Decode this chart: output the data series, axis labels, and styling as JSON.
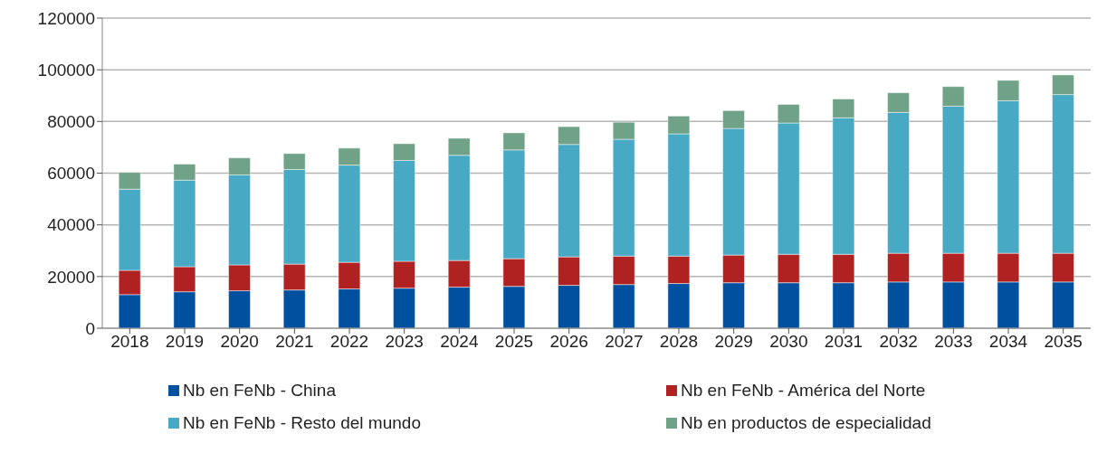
{
  "chart_data": {
    "type": "bar",
    "stacked": true,
    "categories": [
      "2018",
      "2019",
      "2020",
      "2021",
      "2022",
      "2023",
      "2024",
      "2025",
      "2026",
      "2027",
      "2028",
      "2029",
      "2030",
      "2031",
      "2032",
      "2033",
      "2034",
      "2035"
    ],
    "series": [
      {
        "name": "Nb en FeNb - China",
        "color": "#0050a0",
        "values": [
          13000,
          14100,
          14500,
          14800,
          15200,
          15500,
          15900,
          16200,
          16600,
          16900,
          17300,
          17600,
          17600,
          17600,
          17900,
          17900,
          17900,
          17900
        ]
      },
      {
        "name": "Nb en FeNb - América del Norte",
        "color": "#b02222",
        "values": [
          9400,
          9700,
          10000,
          10000,
          10300,
          10400,
          10300,
          10700,
          11000,
          11000,
          10600,
          10700,
          11000,
          11000,
          11100,
          11100,
          11100,
          11100
        ]
      },
      {
        "name": "Nb en FeNb - Resto del mundo",
        "color": "#48a9c5",
        "values": [
          31400,
          33500,
          34800,
          36600,
          37600,
          39000,
          40700,
          42100,
          43500,
          45200,
          47300,
          49000,
          50800,
          52800,
          54500,
          56900,
          59000,
          61400
        ]
      },
      {
        "name": "Nb en productos de especialidad",
        "color": "#70a287",
        "values": [
          6500,
          6200,
          6600,
          6200,
          6600,
          6500,
          6600,
          6600,
          6900,
          6600,
          6900,
          6900,
          7200,
          7300,
          7600,
          7600,
          7900,
          7600
        ]
      }
    ],
    "ylim": [
      0,
      120000
    ],
    "yticks": [
      0,
      20000,
      40000,
      60000,
      80000,
      100000,
      120000
    ],
    "grid": "y",
    "legend": "bottom"
  }
}
